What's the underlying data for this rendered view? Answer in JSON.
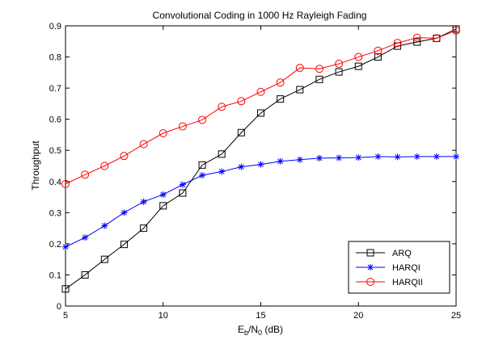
{
  "chart_data": {
    "type": "line",
    "title": "Convolutional Coding in 1000 Hz Rayleigh Fading",
    "xlabel": {
      "main": "E",
      "sub1": "b",
      "mid": "/N",
      "sub2": "0",
      "unit": " (dB)"
    },
    "ylabel": "Throughput",
    "xlim": [
      5,
      25
    ],
    "ylim": [
      0,
      0.9
    ],
    "xticks": [
      5,
      10,
      15,
      20,
      25
    ],
    "yticks": [
      0,
      0.1,
      0.2,
      0.3,
      0.4,
      0.5,
      0.6,
      0.7,
      0.8,
      0.9
    ],
    "grid": false,
    "legend_position": "bottom-right",
    "x": [
      5,
      6,
      7,
      8,
      9,
      10,
      11,
      12,
      13,
      14,
      15,
      16,
      17,
      18,
      19,
      20,
      21,
      22,
      23,
      24,
      25
    ],
    "series": [
      {
        "name": "ARQ",
        "color": "#000000",
        "marker": "square",
        "values": [
          0.055,
          0.1,
          0.15,
          0.198,
          0.25,
          0.322,
          0.363,
          0.453,
          0.488,
          0.557,
          0.62,
          0.665,
          0.695,
          0.728,
          0.752,
          0.77,
          0.8,
          0.835,
          0.848,
          0.86,
          0.89
        ]
      },
      {
        "name": "HARQI",
        "color": "#0000ff",
        "marker": "star",
        "values": [
          0.19,
          0.22,
          0.258,
          0.3,
          0.335,
          0.358,
          0.39,
          0.42,
          0.432,
          0.447,
          0.455,
          0.465,
          0.47,
          0.475,
          0.476,
          0.477,
          0.48,
          0.479,
          0.48,
          0.48,
          0.48
        ]
      },
      {
        "name": "HARQII",
        "color": "#ff0000",
        "marker": "circle",
        "values": [
          0.392,
          0.422,
          0.45,
          0.482,
          0.52,
          0.555,
          0.577,
          0.598,
          0.64,
          0.658,
          0.688,
          0.718,
          0.765,
          0.762,
          0.778,
          0.8,
          0.82,
          0.845,
          0.862,
          0.86,
          0.885
        ]
      }
    ]
  }
}
